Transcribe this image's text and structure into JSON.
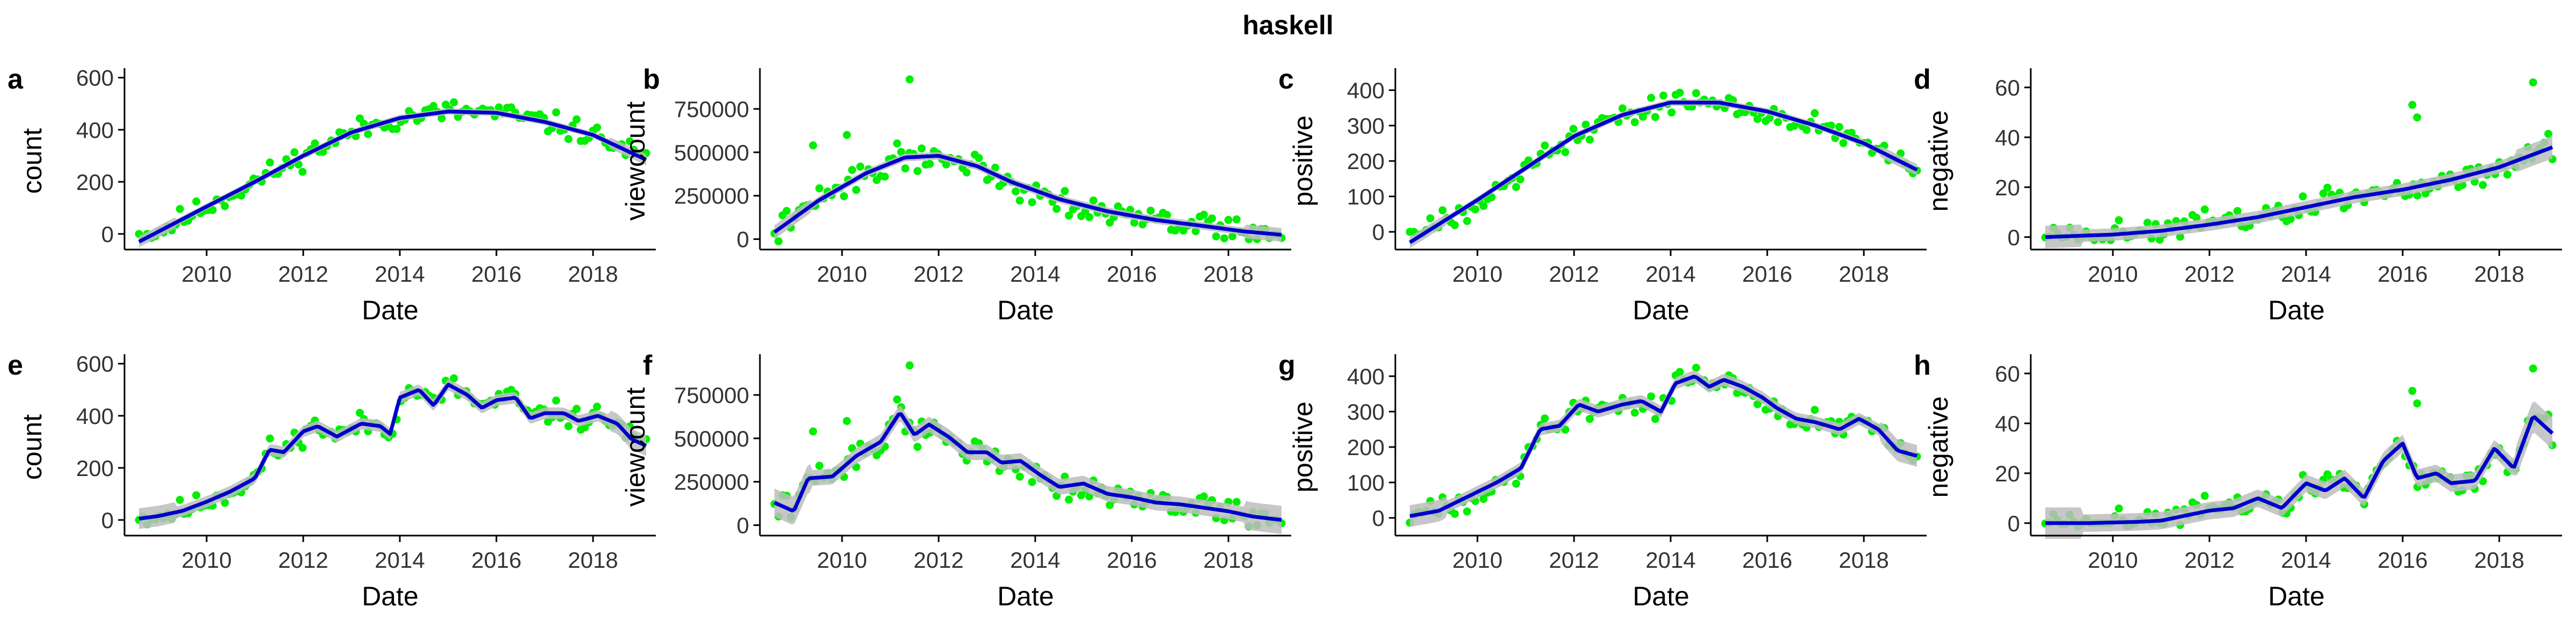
{
  "figure": {
    "title": "haskell",
    "point_color": "#00ee00",
    "line_color": "#0000cc",
    "band_color": "#bdbdbd"
  },
  "chart_data": [
    {
      "panel": "a",
      "type": "scatter",
      "smooth": "loess",
      "xlabel": "Date",
      "ylabel": "count",
      "xlim": [
        2008.3,
        2019.3
      ],
      "xticks": [
        2010,
        2012,
        2014,
        2016,
        2018
      ],
      "ylim": [
        -60,
        620
      ],
      "yticks": [
        0,
        200,
        400,
        600
      ],
      "ytick_labels": [
        "0",
        "200",
        "400",
        "600"
      ],
      "band_width": 12,
      "fit": [
        [
          2008.6,
          -30
        ],
        [
          2010,
          105
        ],
        [
          2011,
          200
        ],
        [
          2012,
          300
        ],
        [
          2013,
          390
        ],
        [
          2014,
          445
        ],
        [
          2015,
          470
        ],
        [
          2016,
          465
        ],
        [
          2017,
          430
        ],
        [
          2018,
          380
        ],
        [
          2019.1,
          285
        ]
      ],
      "spikes": [],
      "noise": 40,
      "seed": 11,
      "npoints": 125
    },
    {
      "panel": "b",
      "type": "scatter",
      "smooth": "loess",
      "xlabel": "Date",
      "ylabel": "viewcount",
      "xlim": [
        2008.3,
        2019.3
      ],
      "xticks": [
        2010,
        2012,
        2014,
        2016,
        2018
      ],
      "ylim": [
        -60000,
        960000
      ],
      "yticks": [
        0,
        250000,
        500000,
        750000
      ],
      "ytick_labels": [
        "0",
        "250000",
        "500000",
        "750000"
      ],
      "band_width": 22000,
      "fit": [
        [
          2008.6,
          40000
        ],
        [
          2009.5,
          220000
        ],
        [
          2010.5,
          380000
        ],
        [
          2011.3,
          470000
        ],
        [
          2012,
          480000
        ],
        [
          2012.8,
          420000
        ],
        [
          2013.5,
          330000
        ],
        [
          2014.5,
          230000
        ],
        [
          2015.5,
          160000
        ],
        [
          2016.5,
          110000
        ],
        [
          2017.5,
          75000
        ],
        [
          2018.3,
          45000
        ],
        [
          2019.1,
          25000
        ]
      ],
      "spikes": [
        [
          2011.4,
          920000
        ],
        [
          2010.1,
          600000
        ],
        [
          2009.4,
          540000
        ]
      ],
      "noise": 70000,
      "seed": 22,
      "npoints": 125
    },
    {
      "panel": "c",
      "type": "scatter",
      "smooth": "loess",
      "xlabel": "Date",
      "ylabel": "positive",
      "xlim": [
        2008.3,
        2019.3
      ],
      "xticks": [
        2010,
        2012,
        2014,
        2016,
        2018
      ],
      "ylim": [
        -50,
        450
      ],
      "yticks": [
        0,
        100,
        200,
        300,
        400
      ],
      "ytick_labels": [
        "0",
        "100",
        "200",
        "300",
        "400"
      ],
      "band_width": 9,
      "fit": [
        [
          2008.6,
          -30
        ],
        [
          2010,
          90
        ],
        [
          2011,
          180
        ],
        [
          2012,
          270
        ],
        [
          2013,
          330
        ],
        [
          2014,
          365
        ],
        [
          2015,
          365
        ],
        [
          2016,
          340
        ],
        [
          2017,
          300
        ],
        [
          2018,
          250
        ],
        [
          2019.1,
          175
        ]
      ],
      "spikes": [],
      "noise": 30,
      "seed": 33,
      "npoints": 125
    },
    {
      "panel": "d",
      "type": "scatter",
      "smooth": "loess",
      "xlabel": "Date",
      "ylabel": "negative",
      "xlim": [
        2008.3,
        2019.3
      ],
      "xticks": [
        2010,
        2012,
        2014,
        2016,
        2018
      ],
      "ylim": [
        -5,
        66
      ],
      "yticks": [
        0,
        20,
        40,
        60
      ],
      "ytick_labels": [
        "0",
        "20",
        "40",
        "60"
      ],
      "band_width": 2.5,
      "fit": [
        [
          2008.6,
          0
        ],
        [
          2010,
          1
        ],
        [
          2011,
          2.5
        ],
        [
          2012,
          5
        ],
        [
          2013,
          8
        ],
        [
          2014,
          12
        ],
        [
          2015,
          16
        ],
        [
          2016,
          19
        ],
        [
          2017,
          23
        ],
        [
          2018,
          28
        ],
        [
          2019.1,
          36
        ]
      ],
      "spikes": [
        [
          2018.7,
          62
        ],
        [
          2016.2,
          53
        ],
        [
          2016.3,
          48
        ]
      ],
      "noise": 5,
      "seed": 44,
      "npoints": 125
    },
    {
      "panel": "e",
      "type": "scatter",
      "smooth": "loess",
      "xlabel": "Date",
      "ylabel": "count",
      "xlim": [
        2008.3,
        2019.3
      ],
      "xticks": [
        2010,
        2012,
        2014,
        2016,
        2018
      ],
      "ylim": [
        -60,
        620
      ],
      "yticks": [
        0,
        200,
        400,
        600
      ],
      "ytick_labels": [
        "0",
        "200",
        "400",
        "600"
      ],
      "band_width": 22,
      "fit": [
        [
          2008.6,
          5
        ],
        [
          2009,
          15
        ],
        [
          2009.5,
          35
        ],
        [
          2010,
          70
        ],
        [
          2010.5,
          110
        ],
        [
          2011,
          160
        ],
        [
          2011.3,
          270
        ],
        [
          2011.6,
          260
        ],
        [
          2012,
          340
        ],
        [
          2012.3,
          360
        ],
        [
          2012.7,
          320
        ],
        [
          2013.2,
          370
        ],
        [
          2013.6,
          360
        ],
        [
          2013.8,
          330
        ],
        [
          2014,
          470
        ],
        [
          2014.4,
          500
        ],
        [
          2014.7,
          440
        ],
        [
          2015,
          520
        ],
        [
          2015.4,
          480
        ],
        [
          2015.7,
          430
        ],
        [
          2016,
          460
        ],
        [
          2016.4,
          470
        ],
        [
          2016.7,
          390
        ],
        [
          2017,
          410
        ],
        [
          2017.4,
          410
        ],
        [
          2017.7,
          380
        ],
        [
          2018.1,
          400
        ],
        [
          2018.5,
          370
        ],
        [
          2018.8,
          310
        ],
        [
          2019.1,
          285
        ]
      ],
      "spikes": [],
      "noise": 40,
      "seed": 11,
      "npoints": 125
    },
    {
      "panel": "f",
      "type": "scatter",
      "smooth": "loess",
      "xlabel": "Date",
      "ylabel": "viewcount",
      "xlim": [
        2008.3,
        2019.3
      ],
      "xticks": [
        2010,
        2012,
        2014,
        2016,
        2018
      ],
      "ylim": [
        -60000,
        960000
      ],
      "yticks": [
        0,
        250000,
        500000,
        750000
      ],
      "ytick_labels": [
        "0",
        "250000",
        "500000",
        "750000"
      ],
      "band_width": 45000,
      "fit": [
        [
          2008.6,
          130000
        ],
        [
          2009,
          80000
        ],
        [
          2009.3,
          270000
        ],
        [
          2009.8,
          280000
        ],
        [
          2010.3,
          400000
        ],
        [
          2010.8,
          480000
        ],
        [
          2011.2,
          650000
        ],
        [
          2011.5,
          520000
        ],
        [
          2011.8,
          580000
        ],
        [
          2012.2,
          510000
        ],
        [
          2012.6,
          420000
        ],
        [
          2013,
          420000
        ],
        [
          2013.3,
          360000
        ],
        [
          2013.7,
          370000
        ],
        [
          2014.1,
          290000
        ],
        [
          2014.5,
          220000
        ],
        [
          2015,
          240000
        ],
        [
          2015.5,
          180000
        ],
        [
          2016,
          160000
        ],
        [
          2016.5,
          130000
        ],
        [
          2017,
          120000
        ],
        [
          2017.5,
          100000
        ],
        [
          2018,
          80000
        ],
        [
          2018.5,
          50000
        ],
        [
          2019.1,
          30000
        ]
      ],
      "spikes": [
        [
          2011.4,
          920000
        ],
        [
          2010.1,
          600000
        ],
        [
          2009.4,
          540000
        ]
      ],
      "noise": 70000,
      "seed": 22,
      "npoints": 125
    },
    {
      "panel": "g",
      "type": "scatter",
      "smooth": "loess",
      "xlabel": "Date",
      "ylabel": "positive",
      "xlim": [
        2008.3,
        2019.3
      ],
      "xticks": [
        2010,
        2012,
        2014,
        2016,
        2018
      ],
      "ylim": [
        -50,
        450
      ],
      "yticks": [
        0,
        100,
        200,
        300,
        400
      ],
      "ytick_labels": [
        "0",
        "100",
        "200",
        "300",
        "400"
      ],
      "band_width": 17,
      "fit": [
        [
          2008.6,
          5
        ],
        [
          2009.2,
          20
        ],
        [
          2009.8,
          60
        ],
        [
          2010.4,
          100
        ],
        [
          2010.9,
          140
        ],
        [
          2011.3,
          250
        ],
        [
          2011.7,
          260
        ],
        [
          2012.1,
          320
        ],
        [
          2012.5,
          300
        ],
        [
          2013,
          320
        ],
        [
          2013.4,
          330
        ],
        [
          2013.8,
          300
        ],
        [
          2014.1,
          380
        ],
        [
          2014.5,
          400
        ],
        [
          2014.8,
          370
        ],
        [
          2015.1,
          390
        ],
        [
          2015.5,
          370
        ],
        [
          2015.9,
          340
        ],
        [
          2016.2,
          310
        ],
        [
          2016.6,
          280
        ],
        [
          2017,
          270
        ],
        [
          2017.5,
          250
        ],
        [
          2017.9,
          280
        ],
        [
          2018.3,
          250
        ],
        [
          2018.7,
          190
        ],
        [
          2019.1,
          175
        ]
      ],
      "spikes": [],
      "noise": 30,
      "seed": 33,
      "npoints": 125
    },
    {
      "panel": "h",
      "type": "scatter",
      "smooth": "loess",
      "xlabel": "Date",
      "ylabel": "negative",
      "xlim": [
        2008.3,
        2019.3
      ],
      "xticks": [
        2010,
        2012,
        2014,
        2016,
        2018
      ],
      "ylim": [
        -5,
        66
      ],
      "yticks": [
        0,
        20,
        40,
        60
      ],
      "ytick_labels": [
        "0",
        "20",
        "40",
        "60"
      ],
      "band_width": 3.5,
      "fit": [
        [
          2008.6,
          0
        ],
        [
          2009.5,
          0
        ],
        [
          2010.5,
          0.5
        ],
        [
          2011,
          1
        ],
        [
          2011.5,
          3
        ],
        [
          2012,
          5
        ],
        [
          2012.5,
          6
        ],
        [
          2013,
          10
        ],
        [
          2013.5,
          6
        ],
        [
          2014,
          16
        ],
        [
          2014.4,
          13
        ],
        [
          2014.8,
          18
        ],
        [
          2015.2,
          10
        ],
        [
          2015.6,
          25
        ],
        [
          2016,
          32
        ],
        [
          2016.3,
          18
        ],
        [
          2016.7,
          20
        ],
        [
          2017,
          16
        ],
        [
          2017.5,
          17
        ],
        [
          2017.9,
          30
        ],
        [
          2018.3,
          22
        ],
        [
          2018.7,
          43
        ],
        [
          2019.1,
          36
        ]
      ],
      "spikes": [
        [
          2018.7,
          62
        ],
        [
          2016.2,
          53
        ],
        [
          2016.3,
          48
        ]
      ],
      "noise": 5,
      "seed": 44,
      "npoints": 125
    }
  ]
}
